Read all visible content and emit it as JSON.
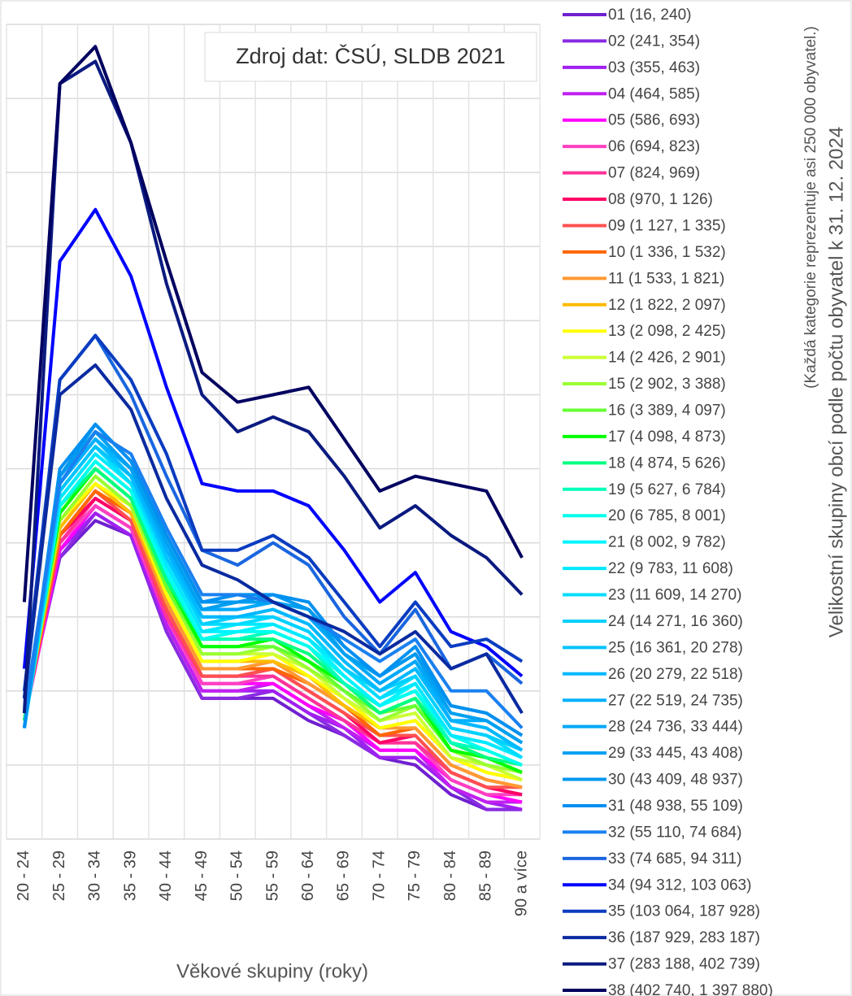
{
  "chart_data": {
    "type": "line",
    "annotation": "Zdroj dat: ČSÚ, SLDB 2021",
    "x_label": "Věkové skupiny (roky)",
    "legend_title": "Velikostní skupiny obcí podle počtu obyvatel k 31. 12. 2024",
    "legend_subtitle": "(Každá kategorie reprezentuje asi 250 000 obyvatel.)",
    "categories": [
      "20 - 24",
      "25 - 29",
      "30 - 34",
      "35 - 39",
      "40 - 44",
      "45 - 49",
      "50 - 54",
      "55 - 59",
      "60 - 64",
      "65 - 69",
      "70 - 74",
      "75 - 79",
      "80 - 84",
      "85 - 89",
      "90 a více"
    ],
    "ylim": [
      0,
      11
    ],
    "yticks": [
      0,
      1,
      2,
      3,
      4,
      5,
      6,
      7,
      8,
      9,
      10,
      11
    ],
    "grid": true,
    "legend": "right",
    "series": [
      {
        "name": "01 (16, 240)",
        "color": "#7020d0",
        "values": [
          1.7,
          3.8,
          4.3,
          4.1,
          2.8,
          1.9,
          1.9,
          1.9,
          1.6,
          1.4,
          1.1,
          1.0,
          0.6,
          0.4,
          0.4
        ]
      },
      {
        "name": "02 (241, 354)",
        "color": "#8a2be2",
        "values": [
          1.7,
          3.8,
          4.4,
          4.1,
          2.8,
          1.9,
          1.9,
          2.0,
          1.7,
          1.4,
          1.1,
          1.1,
          0.7,
          0.4,
          0.4
        ]
      },
      {
        "name": "03 (355, 463)",
        "color": "#a020f0",
        "values": [
          1.7,
          3.9,
          4.4,
          4.1,
          2.9,
          2.0,
          2.0,
          2.0,
          1.7,
          1.5,
          1.1,
          1.1,
          0.7,
          0.5,
          0.4
        ]
      },
      {
        "name": "04 (464, 585)",
        "color": "#c020f0",
        "values": [
          1.7,
          3.9,
          4.5,
          4.2,
          2.9,
          2.0,
          2.0,
          2.1,
          1.8,
          1.5,
          1.2,
          1.2,
          0.7,
          0.5,
          0.5
        ]
      },
      {
        "name": "05 (586, 693)",
        "color": "#ff00ff",
        "values": [
          1.6,
          3.9,
          4.5,
          4.2,
          3.0,
          2.1,
          2.1,
          2.1,
          1.8,
          1.6,
          1.2,
          1.2,
          0.8,
          0.6,
          0.5
        ]
      },
      {
        "name": "06 (694, 823)",
        "color": "#ff40c0",
        "values": [
          1.6,
          4.0,
          4.5,
          4.2,
          3.0,
          2.1,
          2.1,
          2.2,
          1.9,
          1.6,
          1.3,
          1.3,
          0.8,
          0.6,
          0.6
        ]
      },
      {
        "name": "07 (824, 969)",
        "color": "#ff3399",
        "values": [
          1.6,
          4.0,
          4.6,
          4.3,
          3.0,
          2.2,
          2.2,
          2.2,
          1.9,
          1.6,
          1.3,
          1.3,
          0.9,
          0.7,
          0.6
        ]
      },
      {
        "name": "08 (970, 1 126)",
        "color": "#ff0066",
        "values": [
          1.6,
          4.1,
          4.6,
          4.3,
          3.1,
          2.2,
          2.2,
          2.3,
          2.0,
          1.7,
          1.3,
          1.4,
          0.9,
          0.7,
          0.6
        ]
      },
      {
        "name": "09 (1 127, 1 335)",
        "color": "#ff5050",
        "values": [
          1.6,
          4.1,
          4.7,
          4.3,
          3.1,
          2.2,
          2.2,
          2.3,
          2.0,
          1.7,
          1.4,
          1.4,
          0.9,
          0.7,
          0.7
        ]
      },
      {
        "name": "10 (1 336, 1 532)",
        "color": "#ff6600",
        "values": [
          1.6,
          4.1,
          4.7,
          4.4,
          3.2,
          2.3,
          2.3,
          2.3,
          2.1,
          1.8,
          1.4,
          1.5,
          1.0,
          0.8,
          0.7
        ]
      },
      {
        "name": "11 (1 533, 1 821)",
        "color": "#ff9933",
        "values": [
          1.6,
          4.2,
          4.8,
          4.4,
          3.2,
          2.3,
          2.3,
          2.4,
          2.1,
          1.8,
          1.5,
          1.5,
          1.0,
          0.8,
          0.7
        ]
      },
      {
        "name": "12 (1 822, 2 097)",
        "color": "#ffbb00",
        "values": [
          1.6,
          4.2,
          4.8,
          4.4,
          3.3,
          2.4,
          2.4,
          2.4,
          2.2,
          1.8,
          1.5,
          1.6,
          1.1,
          0.9,
          0.8
        ]
      },
      {
        "name": "13 (2 098, 2 425)",
        "color": "#ffff00",
        "values": [
          1.6,
          4.3,
          4.8,
          4.5,
          3.3,
          2.4,
          2.4,
          2.5,
          2.2,
          1.9,
          1.5,
          1.6,
          1.1,
          0.9,
          0.8
        ]
      },
      {
        "name": "14 (2 426, 2 901)",
        "color": "#ccff33",
        "values": [
          1.6,
          4.3,
          4.9,
          4.5,
          3.4,
          2.5,
          2.5,
          2.5,
          2.3,
          1.9,
          1.6,
          1.7,
          1.1,
          1.0,
          0.8
        ]
      },
      {
        "name": "15 (2 902, 3 388)",
        "color": "#99ff33",
        "values": [
          1.6,
          4.3,
          4.9,
          4.5,
          3.4,
          2.5,
          2.5,
          2.6,
          2.3,
          2.0,
          1.6,
          1.8,
          1.2,
          1.0,
          0.9
        ]
      },
      {
        "name": "16 (3 389, 4 097)",
        "color": "#66ff33",
        "values": [
          1.6,
          4.4,
          5.0,
          4.6,
          3.4,
          2.6,
          2.6,
          2.6,
          2.4,
          2.0,
          1.7,
          1.8,
          1.2,
          1.1,
          0.9
        ]
      },
      {
        "name": "17 (4 098, 4 873)",
        "color": "#00ff00",
        "values": [
          1.6,
          4.4,
          5.0,
          4.6,
          3.5,
          2.6,
          2.6,
          2.7,
          2.4,
          2.1,
          1.7,
          1.9,
          1.2,
          1.1,
          0.9
        ]
      },
      {
        "name": "18 (4 874, 5 626)",
        "color": "#00ff80",
        "values": [
          1.6,
          4.5,
          5.0,
          4.6,
          3.5,
          2.7,
          2.7,
          2.7,
          2.5,
          2.1,
          1.7,
          1.9,
          1.3,
          1.1,
          1.0
        ]
      },
      {
        "name": "19 (5 627, 6 784)",
        "color": "#00ffbb",
        "values": [
          1.5,
          4.5,
          5.1,
          4.7,
          3.6,
          2.7,
          2.7,
          2.8,
          2.6,
          2.1,
          1.8,
          2.0,
          1.3,
          1.2,
          1.0
        ]
      },
      {
        "name": "20 (6 785, 8 001)",
        "color": "#00ffee",
        "values": [
          1.5,
          4.5,
          5.1,
          4.7,
          3.6,
          2.7,
          2.8,
          2.8,
          2.6,
          2.2,
          1.8,
          2.0,
          1.4,
          1.2,
          1.0
        ]
      },
      {
        "name": "21 (8 002, 9 782)",
        "color": "#00f4ff",
        "values": [
          1.5,
          4.6,
          5.2,
          4.8,
          3.7,
          2.8,
          2.8,
          2.9,
          2.7,
          2.2,
          1.8,
          2.1,
          1.4,
          1.3,
          1.1
        ]
      },
      {
        "name": "22 (9 783, 11 608)",
        "color": "#00e8ff",
        "values": [
          1.5,
          4.6,
          5.2,
          4.8,
          3.7,
          2.8,
          2.9,
          2.9,
          2.7,
          2.3,
          1.9,
          2.1,
          1.4,
          1.3,
          1.1
        ]
      },
      {
        "name": "23 (11 609, 14 270)",
        "color": "#00dcff",
        "values": [
          1.5,
          4.7,
          5.3,
          4.8,
          3.8,
          2.9,
          2.9,
          3.0,
          2.8,
          2.3,
          1.9,
          2.2,
          1.5,
          1.4,
          1.1
        ]
      },
      {
        "name": "24 (14 271, 16 360)",
        "color": "#00d0ff",
        "values": [
          1.5,
          4.7,
          5.3,
          4.9,
          3.8,
          2.9,
          3.0,
          3.0,
          2.8,
          2.3,
          2.0,
          2.2,
          1.5,
          1.4,
          1.2
        ]
      },
      {
        "name": "25 (16 361, 20 278)",
        "color": "#00c4ff",
        "values": [
          1.5,
          4.7,
          5.3,
          4.9,
          3.8,
          3.0,
          3.0,
          3.1,
          2.9,
          2.4,
          2.0,
          2.3,
          1.6,
          1.5,
          1.2
        ]
      },
      {
        "name": "26 (20 279, 22 518)",
        "color": "#00b8ff",
        "values": [
          1.5,
          4.8,
          5.4,
          4.9,
          3.9,
          3.0,
          3.0,
          3.1,
          2.9,
          2.4,
          2.0,
          2.3,
          1.6,
          1.5,
          1.2
        ]
      },
      {
        "name": "27 (22 519, 24 735)",
        "color": "#00b0ff",
        "values": [
          1.5,
          4.8,
          5.4,
          5.0,
          3.9,
          3.1,
          3.1,
          3.2,
          3.0,
          2.5,
          2.1,
          2.4,
          1.6,
          1.6,
          1.3
        ]
      },
      {
        "name": "28 (24 736, 33 444)",
        "color": "#00a8f8",
        "values": [
          1.5,
          4.9,
          5.5,
          5.0,
          4.0,
          3.1,
          3.1,
          3.2,
          3.0,
          2.5,
          2.1,
          2.4,
          1.7,
          1.6,
          1.3
        ]
      },
      {
        "name": "29 (33 445, 43 408)",
        "color": "#00a0f0",
        "values": [
          1.5,
          4.9,
          5.5,
          5.0,
          4.0,
          3.1,
          3.2,
          3.2,
          3.1,
          2.5,
          2.2,
          2.5,
          1.7,
          1.6,
          1.3
        ]
      },
      {
        "name": "30 (43 409, 48 937)",
        "color": "#0098f0",
        "values": [
          1.5,
          4.9,
          5.6,
          5.1,
          4.1,
          3.2,
          3.2,
          3.3,
          3.1,
          2.6,
          2.2,
          2.5,
          1.8,
          1.7,
          1.4
        ]
      },
      {
        "name": "31 (48 938, 55 109)",
        "color": "#0090f0",
        "values": [
          1.5,
          5.0,
          5.6,
          5.1,
          4.1,
          3.2,
          3.3,
          3.3,
          3.2,
          2.6,
          2.2,
          2.6,
          1.8,
          1.7,
          1.4
        ]
      },
      {
        "name": "32 (55 110, 74 684)",
        "color": "#1a80f0",
        "values": [
          1.7,
          4.8,
          5.5,
          5.2,
          4.2,
          3.3,
          3.3,
          3.2,
          3.0,
          2.7,
          2.4,
          2.7,
          2.0,
          2.0,
          1.5
        ]
      },
      {
        "name": "33 (74 685, 94 311)",
        "color": "#1a66e0",
        "values": [
          1.9,
          6.2,
          6.8,
          6.0,
          4.9,
          3.9,
          3.7,
          4.0,
          3.7,
          3.0,
          2.5,
          3.1,
          2.3,
          2.5,
          2.1
        ]
      },
      {
        "name": "34 (94 312, 103 063)",
        "color": "#0000ff",
        "values": [
          2.3,
          7.8,
          8.5,
          7.6,
          6.1,
          4.8,
          4.7,
          4.7,
          4.5,
          3.9,
          3.2,
          3.6,
          2.8,
          2.6,
          2.2
        ]
      },
      {
        "name": "35 (103 064, 187 928)",
        "color": "#0a3cc0",
        "values": [
          2.0,
          6.2,
          6.8,
          6.2,
          5.2,
          3.9,
          3.9,
          4.1,
          3.8,
          3.2,
          2.6,
          3.2,
          2.6,
          2.7,
          2.4
        ]
      },
      {
        "name": "36 (187 929, 283 187)",
        "color": "#0a2aa0",
        "values": [
          1.9,
          6.0,
          6.4,
          5.8,
          4.6,
          3.7,
          3.5,
          3.2,
          3.0,
          2.8,
          2.5,
          2.8,
          2.3,
          2.5,
          1.7
        ]
      },
      {
        "name": "37 (283 188, 402 739)",
        "color": "#0a1a80",
        "values": [
          1.7,
          10.2,
          10.5,
          9.4,
          7.5,
          6.0,
          5.5,
          5.7,
          5.5,
          4.9,
          4.2,
          4.5,
          4.1,
          3.8,
          3.3
        ]
      },
      {
        "name": "38 (402 740, 1 397 880)",
        "color": "#000060",
        "values": [
          3.2,
          10.2,
          10.7,
          9.4,
          7.8,
          6.3,
          5.9,
          6.0,
          6.1,
          5.4,
          4.7,
          4.9,
          4.8,
          4.7,
          3.8
        ]
      }
    ]
  }
}
